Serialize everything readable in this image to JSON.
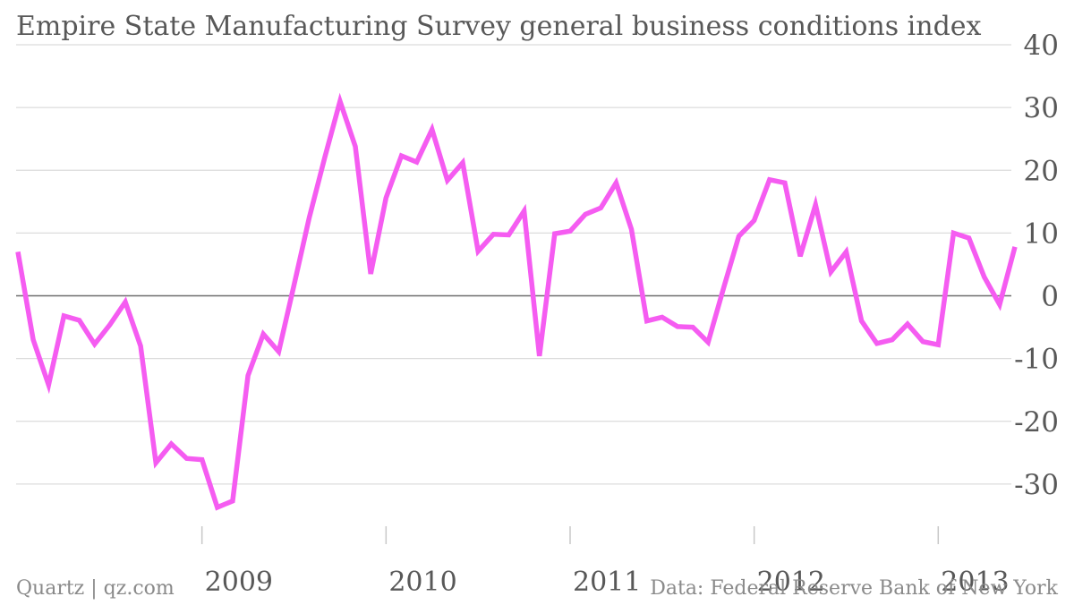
{
  "chart_data": {
    "type": "line",
    "title": "Empire State Manufacturing Survey general business conditions index",
    "xlabel": "",
    "ylabel": "",
    "ylim": [
      -37,
      40
    ],
    "yticks": [
      40,
      30,
      20,
      10,
      0,
      -10,
      -20,
      -30
    ],
    "xlim": [
      "2008-01",
      "2013-06"
    ],
    "xticks": [
      "2009",
      "2010",
      "2011",
      "2012",
      "2013"
    ],
    "grid": true,
    "series": [
      {
        "color": "#f55cf1",
        "dates": [
          "2008-01",
          "2008-02",
          "2008-03",
          "2008-04",
          "2008-05",
          "2008-06",
          "2008-07",
          "2008-08",
          "2008-09",
          "2008-10",
          "2008-11",
          "2008-12",
          "2009-01",
          "2009-02",
          "2009-03",
          "2009-04",
          "2009-05",
          "2009-06",
          "2009-07",
          "2009-08",
          "2009-09",
          "2009-10",
          "2009-11",
          "2009-12",
          "2010-01",
          "2010-02",
          "2010-03",
          "2010-04",
          "2010-05",
          "2010-06",
          "2010-07",
          "2010-08",
          "2010-09",
          "2010-10",
          "2010-11",
          "2010-12",
          "2011-01",
          "2011-02",
          "2011-03",
          "2011-04",
          "2011-05",
          "2011-06",
          "2011-07",
          "2011-08",
          "2011-09",
          "2011-10",
          "2011-11",
          "2011-12",
          "2012-01",
          "2012-02",
          "2012-03",
          "2012-04",
          "2012-05",
          "2012-06",
          "2012-07",
          "2012-08",
          "2012-09",
          "2012-10",
          "2012-11",
          "2012-12",
          "2013-01",
          "2013-02",
          "2013-03",
          "2013-04",
          "2013-05",
          "2013-06"
        ],
        "values": [
          7.0,
          -7.0,
          -14.2,
          -3.2,
          -3.9,
          -7.7,
          -4.6,
          -1.0,
          -8.0,
          -26.6,
          -23.6,
          -25.9,
          -26.1,
          -33.7,
          -32.7,
          -12.7,
          -6.1,
          -8.9,
          1.7,
          12.5,
          22.0,
          31.0,
          23.8,
          3.5,
          15.6,
          22.3,
          21.3,
          26.5,
          18.4,
          21.2,
          7.1,
          9.8,
          9.7,
          13.5,
          -9.6,
          9.9,
          10.3,
          13.0,
          14.0,
          18.0,
          10.6,
          -4.0,
          -3.4,
          -4.9,
          -5.0,
          -7.4,
          1.2,
          9.5,
          12.0,
          18.5,
          18.0,
          6.3,
          14.5,
          3.8,
          7.0,
          -4.0,
          -7.6,
          -7.0,
          -4.5,
          -7.3,
          -7.8,
          10.0,
          9.2,
          3.0,
          -1.4,
          7.8
        ]
      }
    ]
  },
  "footer": {
    "left": "Quartz | qz.com",
    "right": "Data: Federal Reserve Bank of New York"
  }
}
